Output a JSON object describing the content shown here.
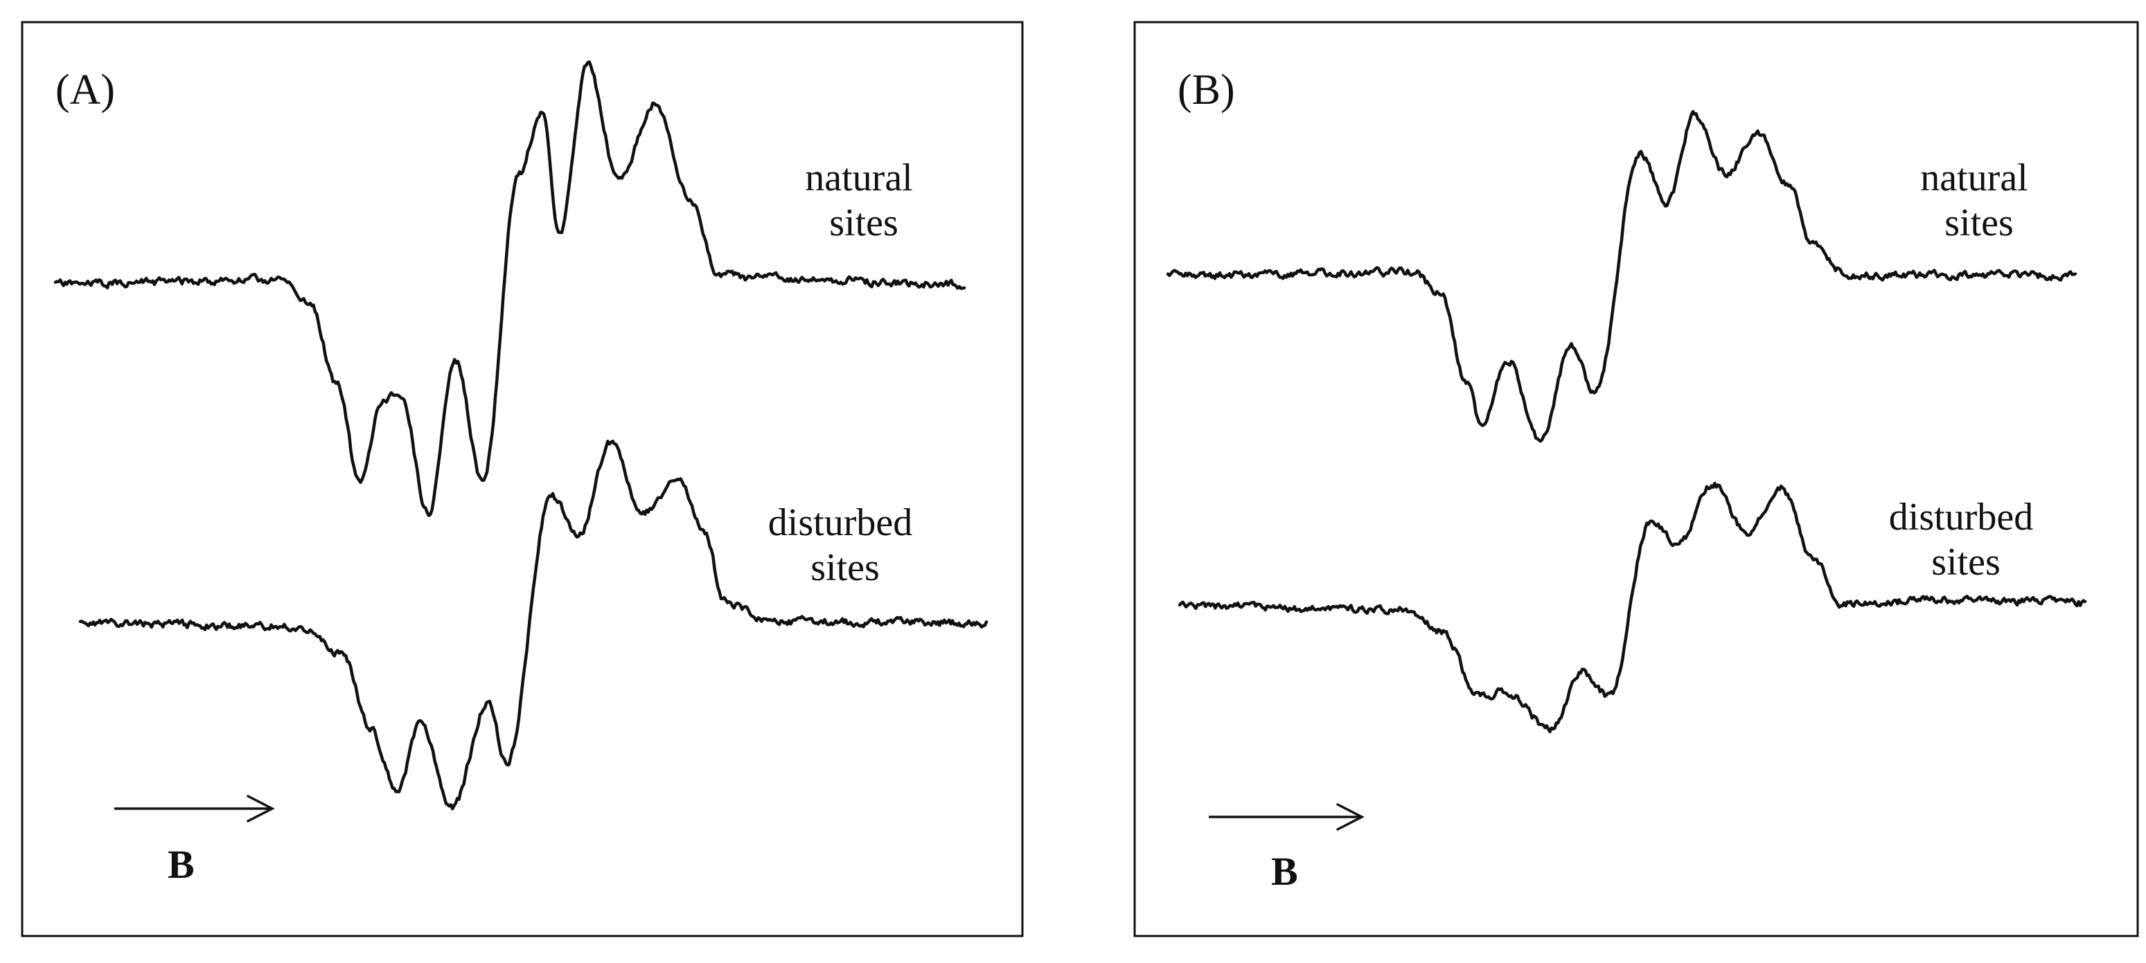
{
  "chart_data": [
    {
      "type": "line",
      "title": "",
      "panel_label": "(A)",
      "xlabel": "",
      "ylabel": "",
      "field_axis_label": "B",
      "x_range": [
        0,
        1
      ],
      "grid": false,
      "series": [
        {
          "name": "natural sites",
          "label_lines": [
            "natural",
            "sites"
          ],
          "keypoints": [
            [
              0.0,
              0.0
            ],
            [
              0.25,
              0.02
            ],
            [
              0.28,
              -0.1
            ],
            [
              0.31,
              -0.5
            ],
            [
              0.335,
              -1.0
            ],
            [
              0.36,
              -0.58
            ],
            [
              0.38,
              -0.55
            ],
            [
              0.41,
              -1.14
            ],
            [
              0.44,
              -0.38
            ],
            [
              0.47,
              -0.98
            ],
            [
              0.51,
              0.55
            ],
            [
              0.535,
              0.86
            ],
            [
              0.555,
              0.25
            ],
            [
              0.585,
              1.09
            ],
            [
              0.62,
              0.52
            ],
            [
              0.66,
              0.9
            ],
            [
              0.7,
              0.4
            ],
            [
              0.73,
              0.05
            ],
            [
              0.76,
              0.03
            ],
            [
              1.0,
              0.0
            ]
          ]
        },
        {
          "name": "disturbed sites",
          "label_lines": [
            "disturbed",
            "sites"
          ],
          "keypoints": [
            [
              0.0,
              0.0
            ],
            [
              0.24,
              -0.02
            ],
            [
              0.29,
              -0.18
            ],
            [
              0.32,
              -0.6
            ],
            [
              0.35,
              -0.95
            ],
            [
              0.375,
              -0.58
            ],
            [
              0.41,
              -1.05
            ],
            [
              0.45,
              -0.45
            ],
            [
              0.47,
              -0.8
            ],
            [
              0.52,
              0.72
            ],
            [
              0.55,
              0.5
            ],
            [
              0.585,
              1.02
            ],
            [
              0.62,
              0.62
            ],
            [
              0.66,
              0.82
            ],
            [
              0.69,
              0.5
            ],
            [
              0.71,
              0.12
            ],
            [
              0.76,
              0.01
            ],
            [
              1.0,
              0.0
            ]
          ]
        }
      ]
    },
    {
      "type": "line",
      "title": "",
      "panel_label": "(B)",
      "xlabel": "",
      "ylabel": "",
      "field_axis_label": "B",
      "x_range": [
        0,
        1
      ],
      "grid": false,
      "series": [
        {
          "name": "natural sites",
          "label_lines": [
            "natural",
            "sites"
          ],
          "keypoints": [
            [
              0.0,
              0.0
            ],
            [
              0.27,
              0.02
            ],
            [
              0.3,
              -0.1
            ],
            [
              0.33,
              -0.62
            ],
            [
              0.345,
              -0.86
            ],
            [
              0.375,
              -0.48
            ],
            [
              0.41,
              -0.95
            ],
            [
              0.445,
              -0.4
            ],
            [
              0.47,
              -0.68
            ],
            [
              0.52,
              0.7
            ],
            [
              0.55,
              0.42
            ],
            [
              0.58,
              0.92
            ],
            [
              0.615,
              0.58
            ],
            [
              0.65,
              0.82
            ],
            [
              0.685,
              0.52
            ],
            [
              0.71,
              0.18
            ],
            [
              0.75,
              0.0
            ],
            [
              1.0,
              0.0
            ]
          ]
        },
        {
          "name": "disturbed sites",
          "label_lines": [
            "disturbed",
            "sites"
          ],
          "keypoints": [
            [
              0.0,
              0.0
            ],
            [
              0.25,
              -0.02
            ],
            [
              0.29,
              -0.15
            ],
            [
              0.33,
              -0.55
            ],
            [
              0.36,
              -0.52
            ],
            [
              0.41,
              -0.75
            ],
            [
              0.445,
              -0.4
            ],
            [
              0.475,
              -0.55
            ],
            [
              0.52,
              0.52
            ],
            [
              0.55,
              0.38
            ],
            [
              0.59,
              0.75
            ],
            [
              0.625,
              0.45
            ],
            [
              0.665,
              0.72
            ],
            [
              0.7,
              0.3
            ],
            [
              0.73,
              0.02
            ],
            [
              0.85,
              0.04
            ],
            [
              0.95,
              0.03
            ],
            [
              1.0,
              0.02
            ]
          ]
        }
      ]
    }
  ]
}
